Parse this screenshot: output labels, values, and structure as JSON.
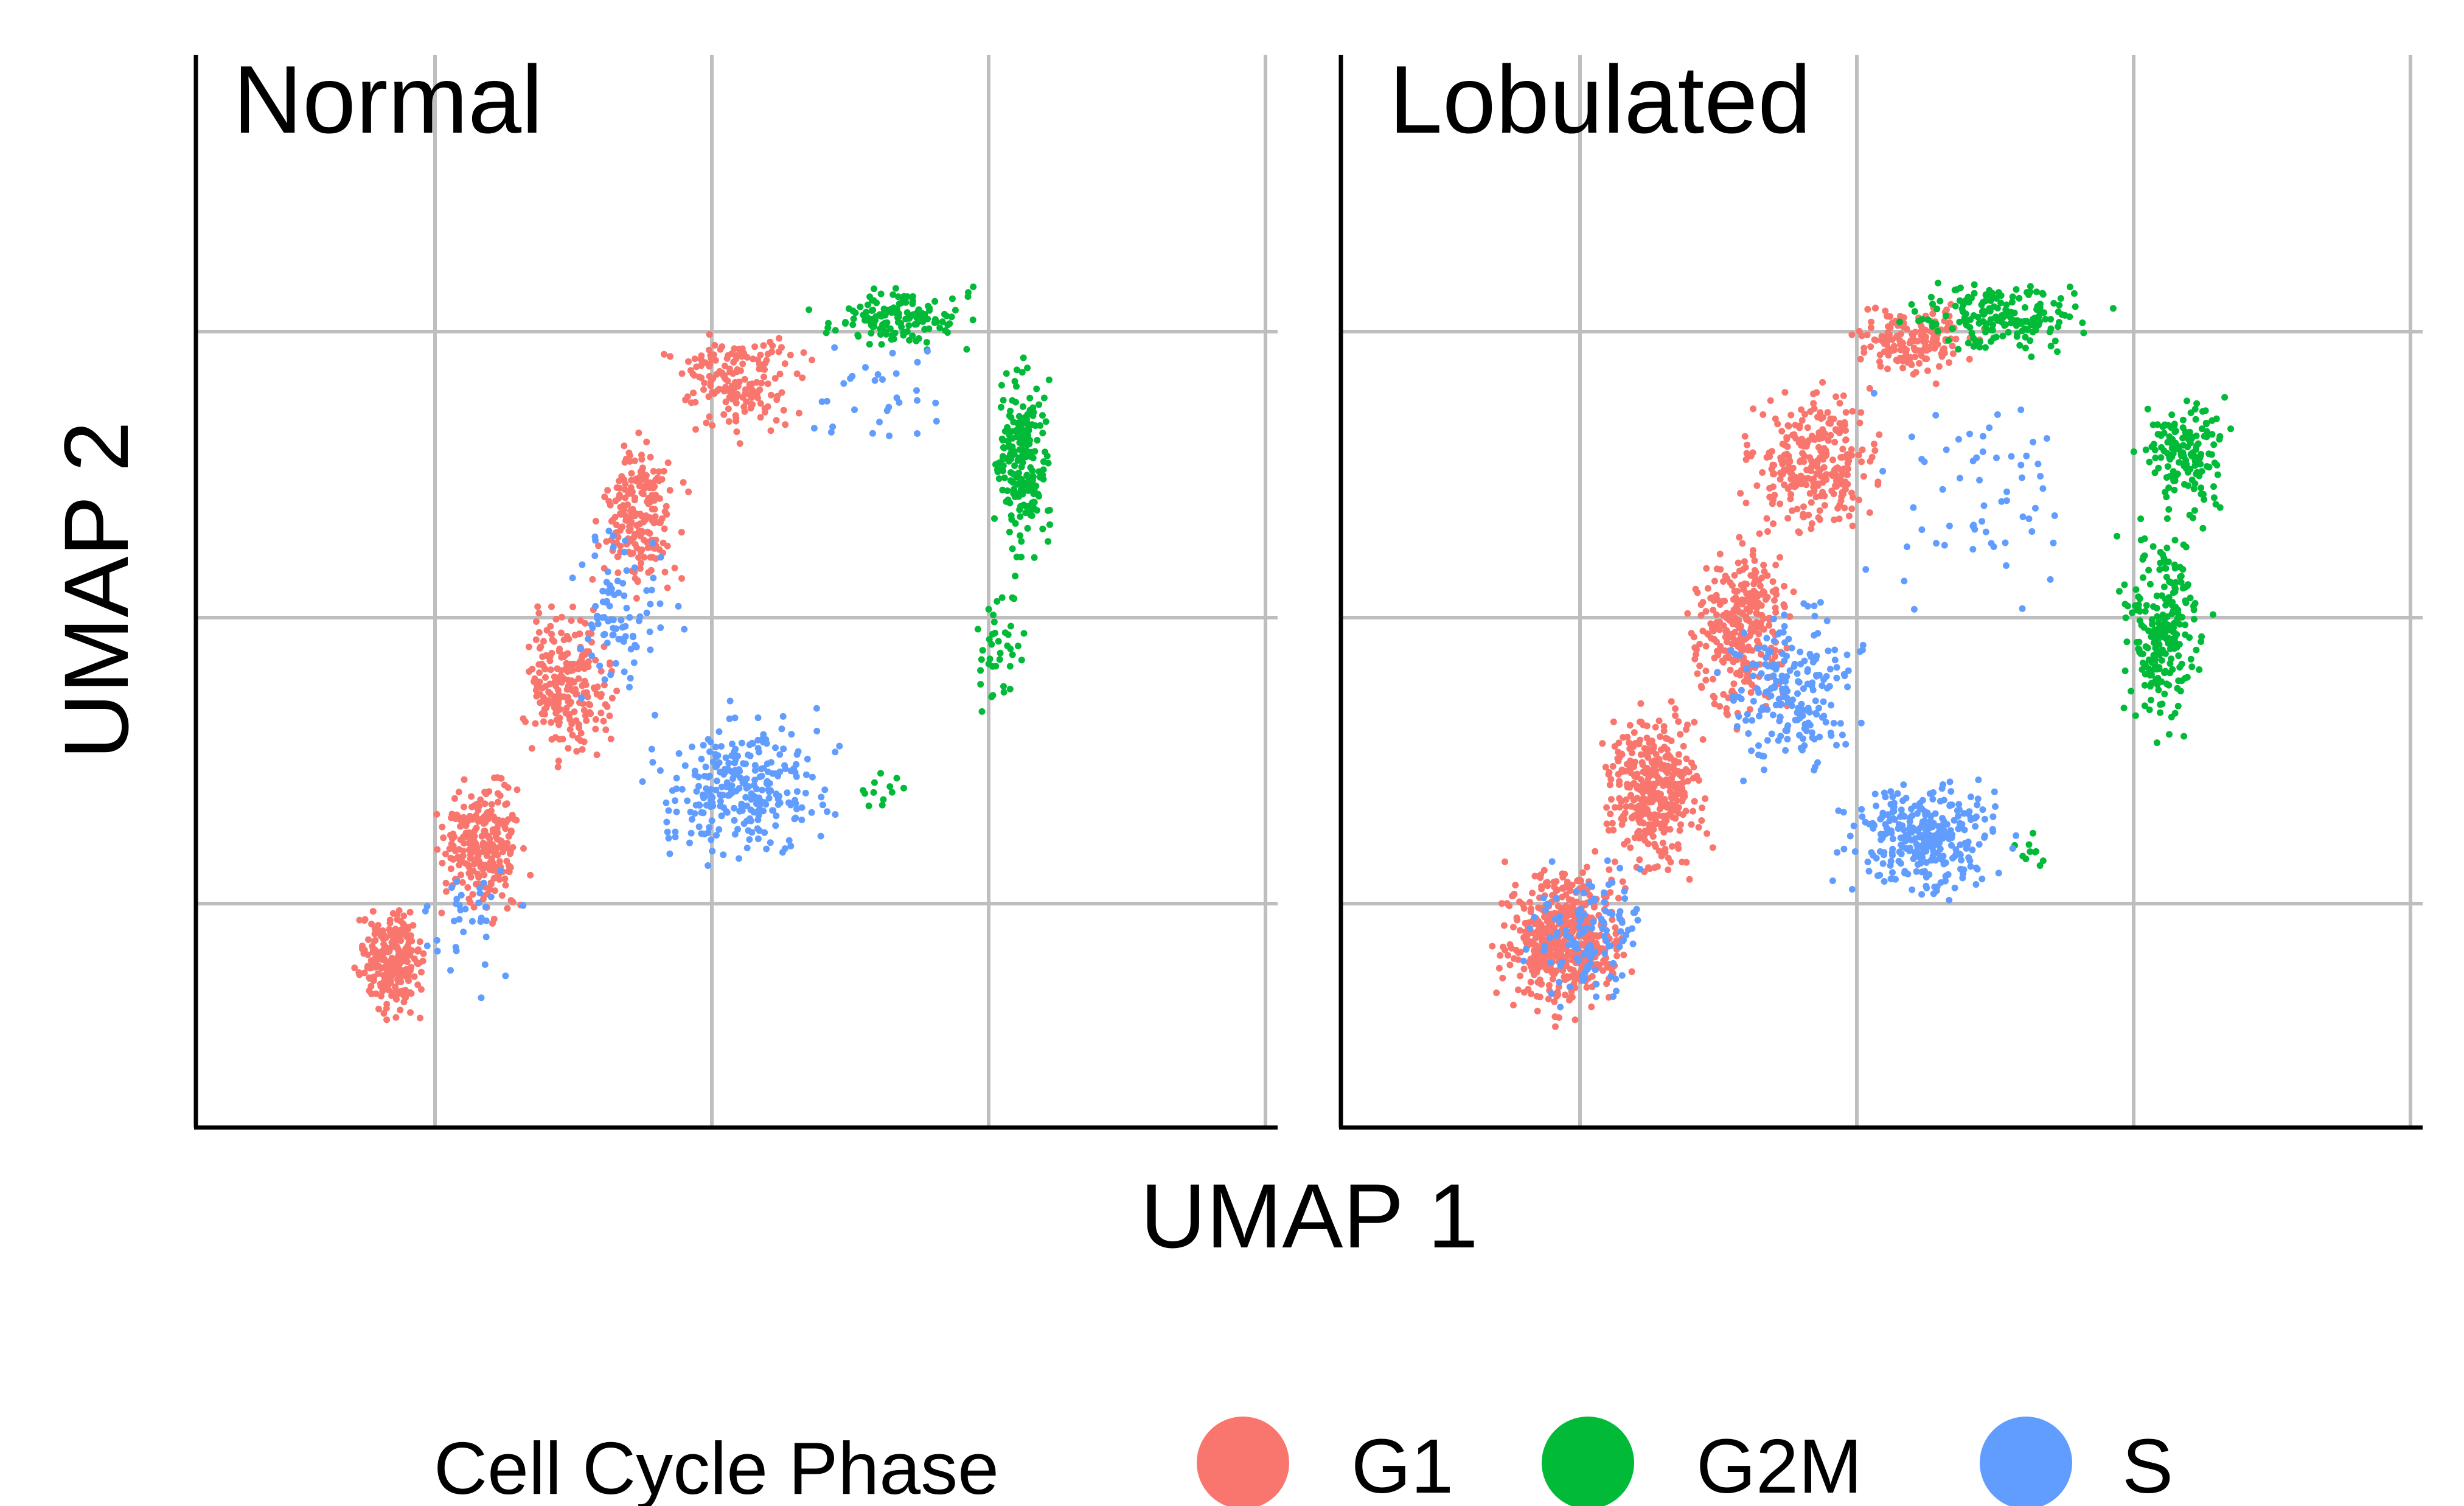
{
  "figure": {
    "xlabel": "UMAP 1",
    "ylabel": "UMAP 2",
    "legend_title": "Cell Cycle Phase"
  },
  "chart_data": [
    {
      "type": "scatter",
      "title": "Normal",
      "xlabel": "UMAP 1",
      "ylabel": "UMAP 2",
      "xlim": [
        0,
        10
      ],
      "ylim": [
        0,
        10
      ],
      "grid": true,
      "legend_position": "bottom",
      "series": [
        {
          "name": "G1",
          "color": "#F8766D",
          "clusters": [
            {
              "x": [
                1.4,
                2.2
              ],
              "y": [
                0.9,
                2.2
              ],
              "n": 260
            },
            {
              "x": [
                2.1,
                3.2
              ],
              "y": [
                1.8,
                3.5
              ],
              "n": 250
            },
            {
              "x": [
                2.9,
                4.0
              ],
              "y": [
                3.2,
                5.1
              ],
              "n": 220
            },
            {
              "x": [
                3.6,
                4.6
              ],
              "y": [
                4.8,
                6.6
              ],
              "n": 200
            },
            {
              "x": [
                4.2,
                5.8
              ],
              "y": [
                6.3,
                7.6
              ],
              "n": 170
            }
          ]
        },
        {
          "name": "G2M",
          "color": "#00BA38",
          "clusters": [
            {
              "x": [
                5.6,
                7.4
              ],
              "y": [
                7.2,
                7.9
              ],
              "n": 150
            },
            {
              "x": [
                7.3,
                8.0
              ],
              "y": [
                5.1,
                7.4
              ],
              "n": 210
            },
            {
              "x": [
                7.0,
                7.8
              ],
              "y": [
                3.5,
                5.4
              ],
              "n": 40
            },
            {
              "x": [
                5.7,
                6.8
              ],
              "y": [
                2.8,
                3.4
              ],
              "n": 12
            }
          ]
        },
        {
          "name": "S",
          "color": "#619CFF",
          "clusters": [
            {
              "x": [
                4.0,
                6.1
              ],
              "y": [
                2.3,
                4.0
              ],
              "n": 280
            },
            {
              "x": [
                3.3,
                4.6
              ],
              "y": [
                3.6,
                5.9
              ],
              "n": 90
            },
            {
              "x": [
                1.8,
                3.2
              ],
              "y": [
                1.0,
                2.8
              ],
              "n": 35
            },
            {
              "x": [
                5.0,
                7.6
              ],
              "y": [
                5.8,
                7.7
              ],
              "n": 30
            }
          ]
        }
      ]
    },
    {
      "type": "scatter",
      "title": "Lobulated",
      "xlabel": "UMAP 1",
      "ylabel": "UMAP 2",
      "xlim": [
        0,
        10
      ],
      "ylim": [
        0,
        10
      ],
      "grid": true,
      "legend_position": "bottom",
      "series": [
        {
          "name": "G1",
          "color": "#F8766D",
          "clusters": [
            {
              "x": [
                1.3,
                2.8
              ],
              "y": [
                0.9,
                2.6
              ],
              "n": 520
            },
            {
              "x": [
                2.3,
                3.5
              ],
              "y": [
                2.2,
                4.1
              ],
              "n": 380
            },
            {
              "x": [
                3.1,
                4.3
              ],
              "y": [
                3.6,
                5.7
              ],
              "n": 320
            },
            {
              "x": [
                3.6,
                5.1
              ],
              "y": [
                5.3,
                7.1
              ],
              "n": 280
            },
            {
              "x": [
                4.6,
                6.0
              ],
              "y": [
                6.9,
                7.8
              ],
              "n": 160
            }
          ]
        },
        {
          "name": "G2M",
          "color": "#00BA38",
          "clusters": [
            {
              "x": [
                5.1,
                7.2
              ],
              "y": [
                7.1,
                8.0
              ],
              "n": 180
            },
            {
              "x": [
                7.3,
                8.3
              ],
              "y": [
                5.6,
                7.0
              ],
              "n": 150
            },
            {
              "x": [
                7.1,
                8.1
              ],
              "y": [
                3.4,
                5.9
              ],
              "n": 240
            },
            {
              "x": [
                6.1,
                6.6
              ],
              "y": [
                2.3,
                2.9
              ],
              "n": 10
            }
          ]
        },
        {
          "name": "S",
          "color": "#619CFF",
          "clusters": [
            {
              "x": [
                4.4,
                6.4
              ],
              "y": [
                2.0,
                3.4
              ],
              "n": 300
            },
            {
              "x": [
                3.3,
                5.0
              ],
              "y": [
                3.0,
                5.1
              ],
              "n": 200
            },
            {
              "x": [
                1.5,
                3.1
              ],
              "y": [
                1.0,
                2.6
              ],
              "n": 120
            },
            {
              "x": [
                4.5,
                7.3
              ],
              "y": [
                4.6,
                7.5
              ],
              "n": 60
            }
          ]
        }
      ]
    }
  ],
  "legend": {
    "title": "Cell Cycle Phase",
    "items": [
      {
        "label": "G1",
        "color": "#F8766D"
      },
      {
        "label": "G2M",
        "color": "#00BA38"
      },
      {
        "label": "S",
        "color": "#619CFF"
      }
    ]
  }
}
